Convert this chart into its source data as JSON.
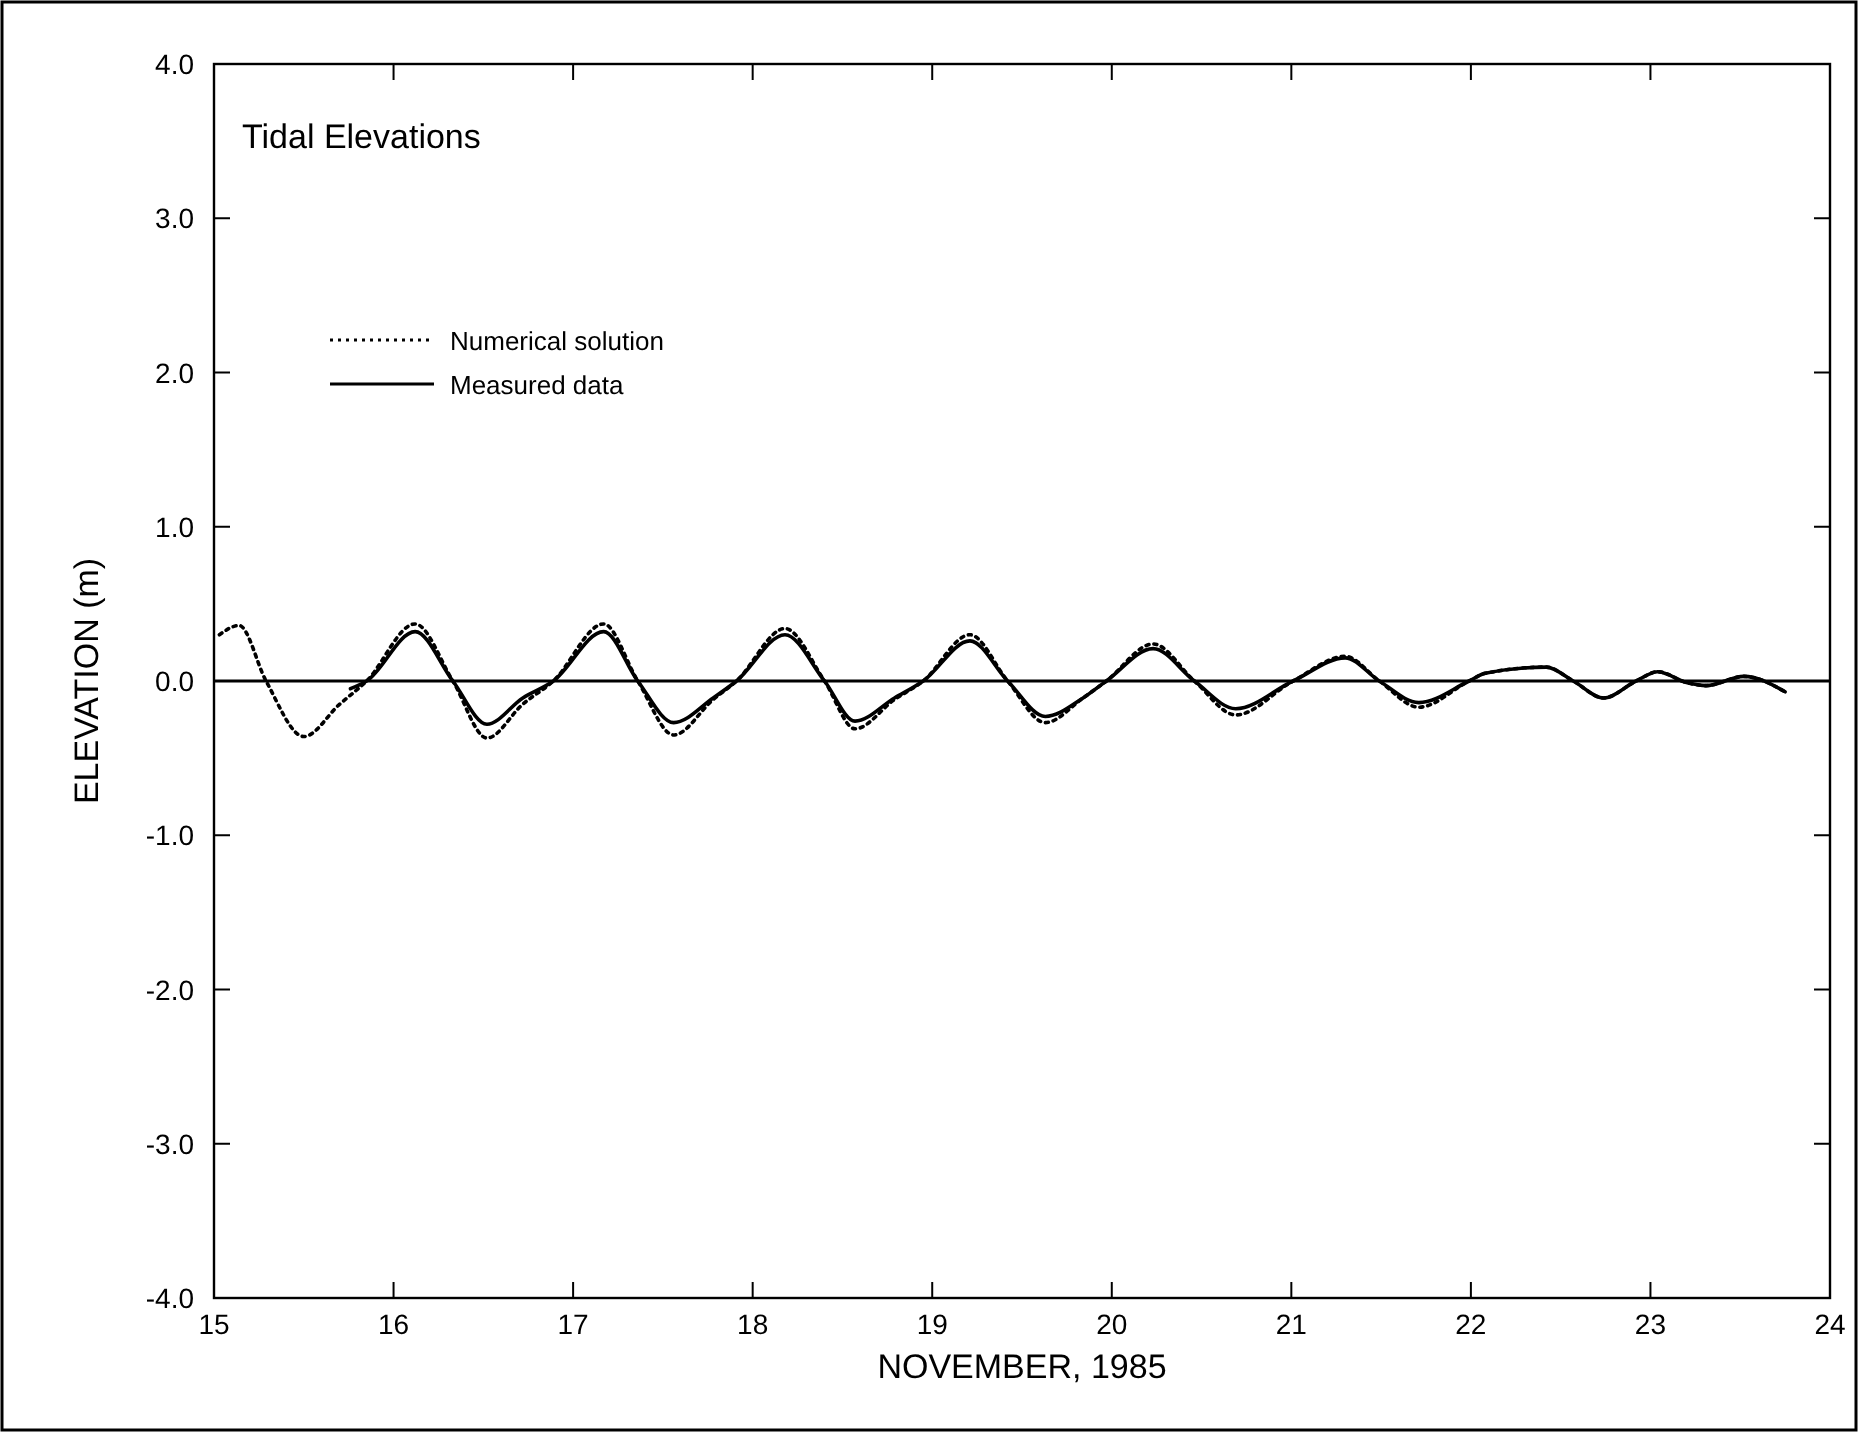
{
  "chart_data": {
    "type": "line",
    "title": "Tidal Elevations",
    "xlabel": "NOVEMBER, 1985",
    "ylabel": "ELEVATION (m)",
    "xlim": [
      15,
      24
    ],
    "xticks": [
      15,
      16,
      17,
      18,
      19,
      20,
      21,
      22,
      23,
      24
    ],
    "ylim": [
      -4,
      4
    ],
    "yticks": [
      {
        "value": -4,
        "label": "-4.0"
      },
      {
        "value": -3,
        "label": "-3.0"
      },
      {
        "value": -2,
        "label": "-2.0"
      },
      {
        "value": -1,
        "label": "-1.0"
      },
      {
        "value": 0,
        "label": "0.0"
      },
      {
        "value": 1,
        "label": "1.0"
      },
      {
        "value": 2,
        "label": "2.0"
      },
      {
        "value": 3,
        "label": "3.0"
      },
      {
        "value": 4,
        "label": "4.0"
      }
    ],
    "grid": false,
    "legend": "top left",
    "marker": "none",
    "ref_lines": [
      {
        "axis": "y",
        "value": 0,
        "color": "#000000",
        "line_style": "solid"
      }
    ],
    "series": [
      {
        "name": "Numerical solution",
        "color": "#000000",
        "line_style": "dotted",
        "x": [
          15.03,
          15.14,
          15.29,
          15.5,
          15.7,
          15.85,
          16.12,
          16.33,
          16.52,
          16.72,
          16.89,
          17.17,
          17.36,
          17.56,
          17.78,
          17.91,
          18.18,
          18.4,
          18.57,
          18.79,
          18.95,
          19.21,
          19.42,
          19.63,
          19.84,
          19.97,
          20.23,
          20.46,
          20.69,
          21.01,
          21.3,
          21.49,
          21.71,
          21.99,
          22.08,
          22.42,
          22.57,
          22.74,
          22.92,
          23.04,
          23.2,
          23.31,
          23.52,
          23.75
        ],
        "values": [
          0.3,
          0.36,
          0,
          -0.36,
          -0.15,
          0,
          0.37,
          0,
          -0.37,
          -0.15,
          0,
          0.37,
          0,
          -0.35,
          -0.12,
          0,
          0.34,
          0,
          -0.31,
          -0.12,
          0,
          0.3,
          0,
          -0.27,
          -0.11,
          0,
          0.24,
          0,
          -0.22,
          0,
          0.16,
          0,
          -0.17,
          0,
          0.05,
          0.09,
          0,
          -0.11,
          0,
          0.06,
          -0.01,
          -0.03,
          0.03,
          -0.07
        ]
      },
      {
        "name": "Measured data",
        "color": "#000000",
        "line_style": "solid",
        "x": [
          15.76,
          15.85,
          16.12,
          16.33,
          16.52,
          16.72,
          16.89,
          17.17,
          17.36,
          17.56,
          17.78,
          17.91,
          18.18,
          18.4,
          18.57,
          18.79,
          18.95,
          19.21,
          19.42,
          19.63,
          19.84,
          19.97,
          20.23,
          20.46,
          20.69,
          21.01,
          21.3,
          21.49,
          21.71,
          21.99,
          22.08,
          22.42,
          22.57,
          22.74,
          22.92,
          23.04,
          23.2,
          23.31,
          23.52,
          23.75
        ],
        "values": [
          -0.05,
          0,
          0.32,
          0,
          -0.28,
          -0.11,
          0,
          0.32,
          0,
          -0.27,
          -0.11,
          0,
          0.3,
          0,
          -0.26,
          -0.11,
          0,
          0.26,
          0,
          -0.23,
          -0.11,
          0,
          0.21,
          0,
          -0.18,
          0,
          0.15,
          0,
          -0.14,
          0,
          0.05,
          0.09,
          0,
          -0.11,
          0,
          0.06,
          -0.01,
          -0.03,
          0.03,
          -0.07
        ]
      }
    ]
  }
}
